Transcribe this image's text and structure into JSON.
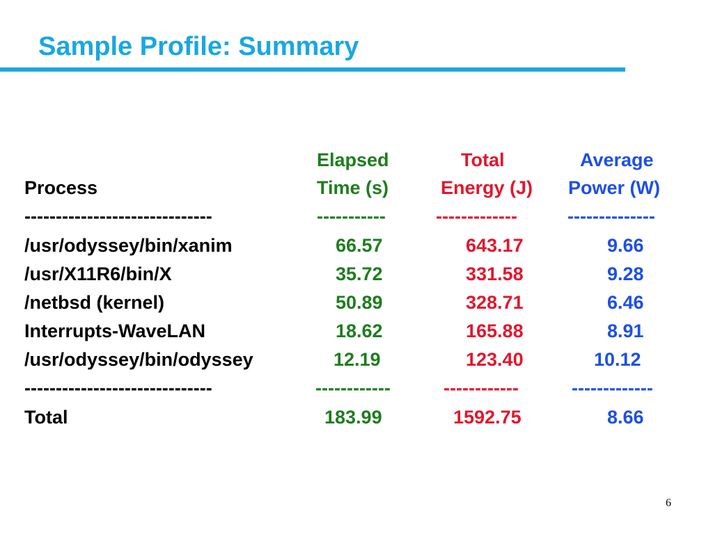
{
  "title": "Sample Profile: Summary",
  "slide_number": "6",
  "colors": {
    "title": "#1aa7e0",
    "elapsed_time": "#1e7d1e",
    "total_energy": "#e3162d",
    "average_power": "#1d4fe6"
  },
  "table": {
    "headers": {
      "process": "Process",
      "elapsed_line1": "Elapsed",
      "elapsed_line2": "Time (s)",
      "energy_line1": "Total",
      "energy_line2": "Energy (J)",
      "power_line1": "Average",
      "power_line2": "Power (W)"
    },
    "separator_top": {
      "process": "------------------------------",
      "elapsed": "-----------",
      "energy": "-------------",
      "power": "--------------"
    },
    "rows": [
      {
        "process": "/usr/odyssey/bin/xanim",
        "elapsed": "66.57",
        "energy": "643.17",
        "power": "9.66"
      },
      {
        "process": "/usr/X11R6/bin/X",
        "elapsed": "35.72",
        "energy": "331.58",
        "power": "9.28"
      },
      {
        "process": "/netbsd (kernel)",
        "elapsed": "50.89",
        "energy": "328.71",
        "power": "6.46"
      },
      {
        "process": "Interrupts-WaveLAN",
        "elapsed": "18.62",
        "energy": "165.88",
        "power": "8.91"
      },
      {
        "process": "/usr/odyssey/bin/odyssey",
        "elapsed": "12.19",
        "energy": "123.40",
        "power": "10.12"
      }
    ],
    "separator_bottom": {
      "process": "------------------------------",
      "elapsed": "------------",
      "energy": "------------",
      "power": "-------------"
    },
    "total": {
      "process": "Total",
      "elapsed": "183.99",
      "energy": "1592.75",
      "power": "8.66"
    }
  }
}
